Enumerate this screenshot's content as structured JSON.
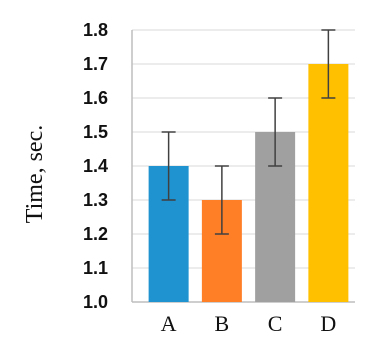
{
  "chart_data": {
    "type": "bar",
    "categories": [
      "A",
      "B",
      "C",
      "D"
    ],
    "values": [
      1.4,
      1.3,
      1.5,
      1.7
    ],
    "error": [
      0.1,
      0.1,
      0.1,
      0.1
    ],
    "colors": [
      "#1f92d0",
      "#ff7f27",
      "#a0a0a0",
      "#ffc000"
    ],
    "title": "",
    "xlabel": "",
    "ylabel": "Time, sec.",
    "ylim": [
      1.0,
      1.8
    ],
    "yticks": [
      "1.0",
      "1.1",
      "1.2",
      "1.3",
      "1.4",
      "1.5",
      "1.6",
      "1.7",
      "1.8"
    ],
    "grid": true,
    "legend": "none"
  }
}
